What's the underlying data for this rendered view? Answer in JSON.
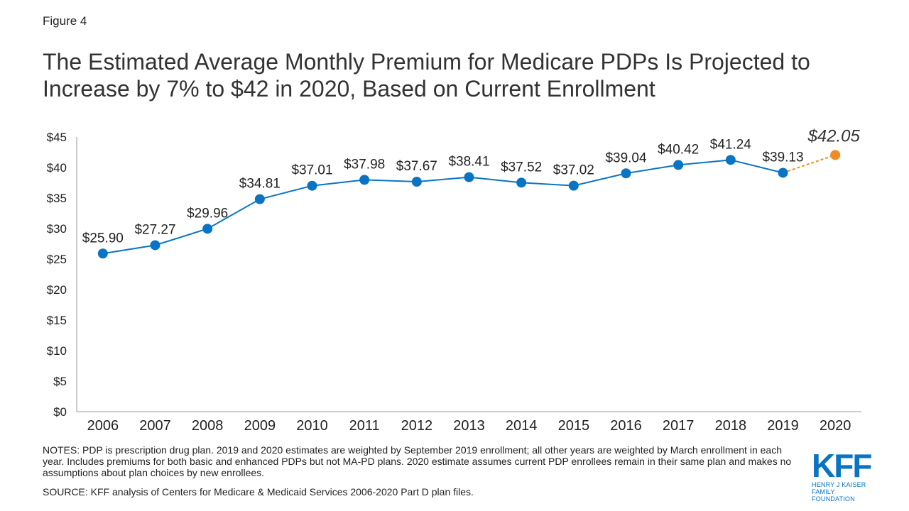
{
  "figure_label": "Figure 4",
  "chart_data": {
    "type": "line",
    "title": "The Estimated Average Monthly Premium for Medicare PDPs Is Projected to Increase by 7% to $42 in 2020, Based on Current Enrollment",
    "categories": [
      "2006",
      "2007",
      "2008",
      "2009",
      "2010",
      "2011",
      "2012",
      "2013",
      "2014",
      "2015",
      "2016",
      "2017",
      "2018",
      "2019",
      "2020"
    ],
    "values": [
      25.9,
      27.27,
      29.96,
      34.81,
      37.01,
      37.98,
      37.67,
      38.41,
      37.52,
      37.02,
      39.04,
      40.42,
      41.24,
      39.13,
      42.05
    ],
    "data_labels": [
      "$25.90",
      "$27.27",
      "$29.96",
      "$34.81",
      "$37.01",
      "$37.98",
      "$37.67",
      "$38.41",
      "$37.52",
      "$37.02",
      "$39.04",
      "$40.42",
      "$41.24",
      "$39.13",
      "$42.05"
    ],
    "projected_index": 14,
    "yticks": [
      "$0",
      "$5",
      "$10",
      "$15",
      "$20",
      "$25",
      "$30",
      "$35",
      "$40",
      "$45"
    ],
    "ylim": [
      0,
      45
    ],
    "ytick_step": 5,
    "xlabel": "",
    "ylabel": "",
    "grid": false,
    "colors": {
      "series": "#0a74c4",
      "projected": "#f08a24"
    }
  },
  "notes": "NOTES: PDP is prescription drug plan. 2019 and 2020 estimates are weighted by September 2019 enrollment;  all other years are weighted by March enrollment  in each year. Includes  premiums for both basic and enhanced  PDPs but not MA-PD plans. 2020 estimate assumes current  PDP enrollees remain in their same plan and makes no assumptions about plan choices by new enrollees.",
  "source": "SOURCE: KFF analysis of Centers for Medicare & Medicaid Services 2006-2020 Part D plan files.",
  "logo": {
    "mark": "KFF",
    "line1": "HENRY J KAISER",
    "line2": "FAMILY FOUNDATION"
  }
}
